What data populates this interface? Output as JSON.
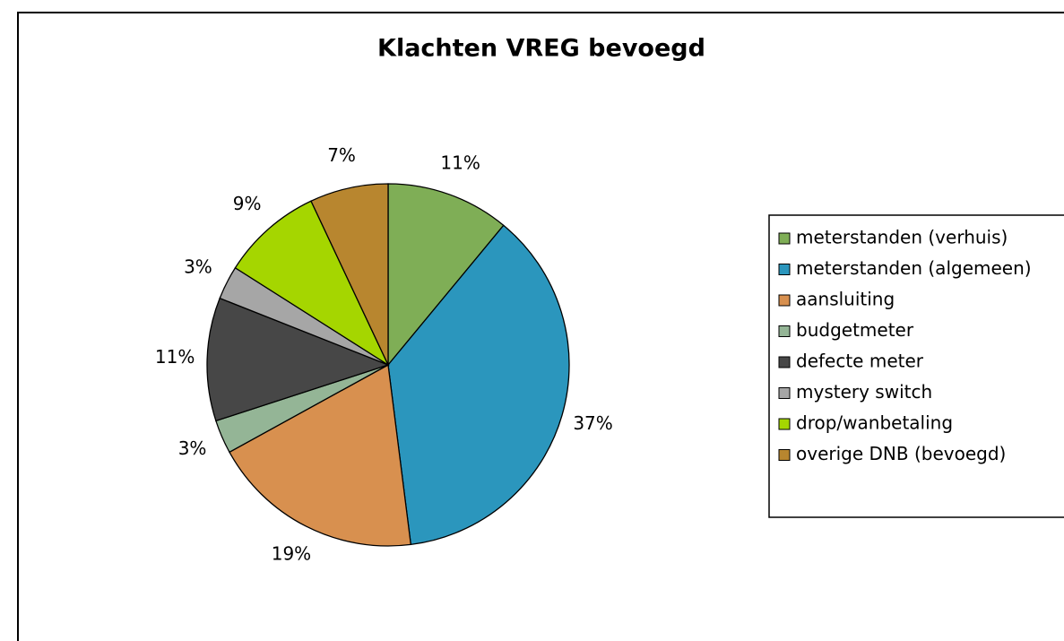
{
  "chart_data": {
    "type": "pie",
    "title": "Klachten VREG bevoegd",
    "categories": [
      "meterstanden (verhuis)",
      "meterstanden (algemeen)",
      "aansluiting",
      "budgetmeter",
      "defecte meter",
      "mystery switch",
      "drop/wanbetaling",
      "overige DNB (bevoegd)"
    ],
    "values": [
      11,
      37,
      19,
      3,
      11,
      3,
      9,
      7
    ],
    "value_labels": [
      "11%",
      "37%",
      "19%",
      "3%",
      "11%",
      "3%",
      "9%",
      "7%"
    ],
    "colors": [
      "#7fae56",
      "#2b96bd",
      "#d8904f",
      "#94b596",
      "#474747",
      "#a6a6a6",
      "#a5d600",
      "#b8862f"
    ],
    "legend": "right"
  }
}
